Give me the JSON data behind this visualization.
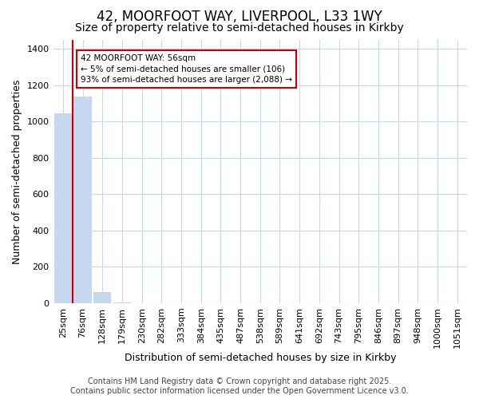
{
  "title": "42, MOORFOOT WAY, LIVERPOOL, L33 1WY",
  "subtitle": "Size of property relative to semi-detached houses in Kirkby",
  "xlabel": "Distribution of semi-detached houses by size in Kirkby",
  "ylabel": "Number of semi-detached properties",
  "annotation_title": "42 MOORFOOT WAY: 56sqm",
  "annotation_line1": "← 5% of semi-detached houses are smaller (106)",
  "annotation_line2": "93% of semi-detached houses are larger (2,088) →",
  "footer_line1": "Contains HM Land Registry data © Crown copyright and database right 2025.",
  "footer_line2": "Contains public sector information licensed under the Open Government Licence v3.0.",
  "bar_labels": [
    "25sqm",
    "76sqm",
    "128sqm",
    "179sqm",
    "230sqm",
    "282sqm",
    "333sqm",
    "384sqm",
    "435sqm",
    "487sqm",
    "538sqm",
    "589sqm",
    "641sqm",
    "692sqm",
    "743sqm",
    "795sqm",
    "846sqm",
    "897sqm",
    "948sqm",
    "1000sqm",
    "1051sqm"
  ],
  "bar_values": [
    1045,
    1140,
    62,
    2,
    0,
    0,
    0,
    0,
    0,
    0,
    0,
    0,
    0,
    0,
    0,
    0,
    0,
    0,
    0,
    0,
    0
  ],
  "bar_color": "#c5d8f0",
  "vline_color": "#cc0000",
  "ylim": [
    0,
    1450
  ],
  "yticks": [
    0,
    200,
    400,
    600,
    800,
    1000,
    1200,
    1400
  ],
  "background_color": "#ffffff",
  "plot_bg_color": "#ffffff",
  "grid_color": "#c8d8ec",
  "annotation_box_color": "#cc0000",
  "title_fontsize": 12,
  "subtitle_fontsize": 10,
  "ylabel_fontsize": 9,
  "xlabel_fontsize": 9,
  "tick_fontsize": 8,
  "footer_fontsize": 7
}
